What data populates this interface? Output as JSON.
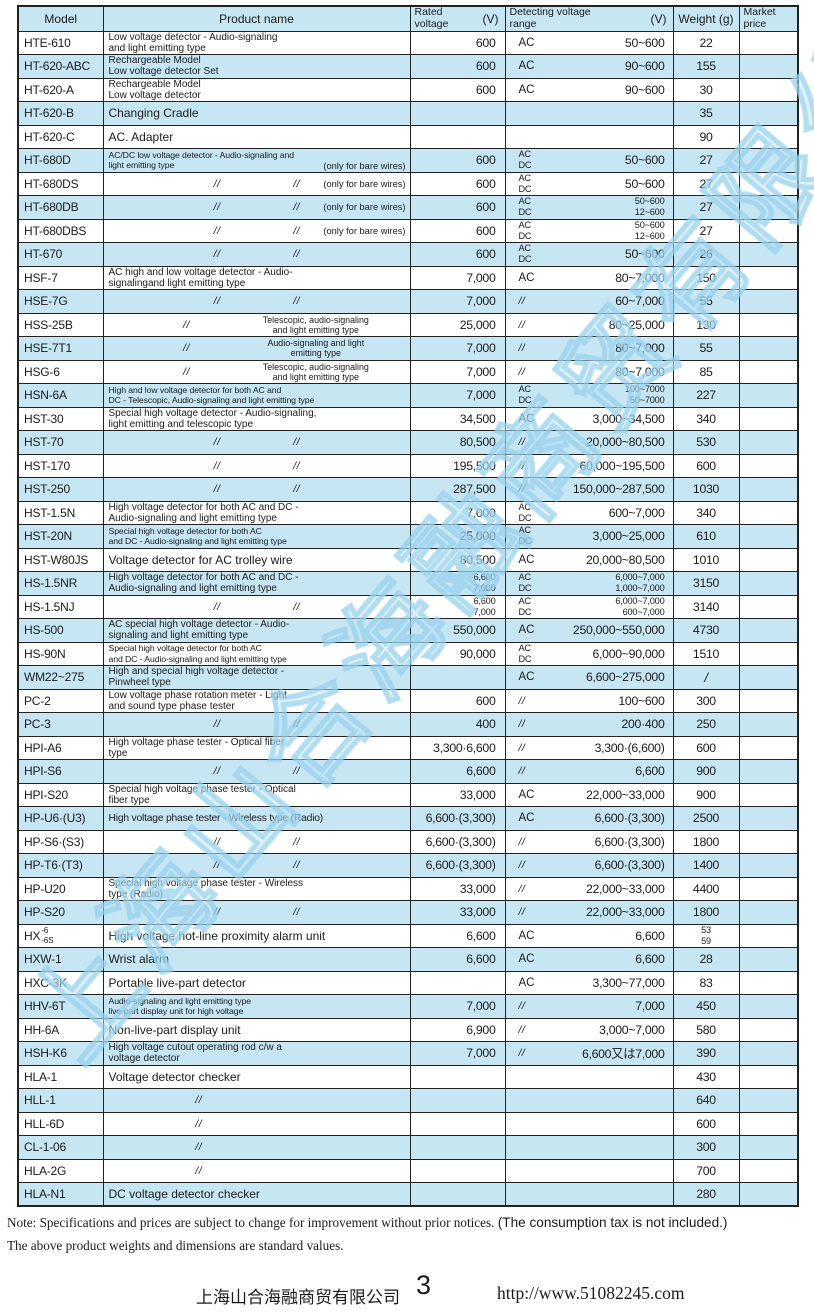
{
  "colors": {
    "row_alt": "#c7e6f4",
    "header_bg": "#c7e6f4",
    "border": "#222222",
    "watermark_blue": "#9fd4ec"
  },
  "ditto_mark": "//",
  "watermark_text": "上海山合海融商贸有限公司",
  "table": {
    "columns": [
      {
        "label": "Model"
      },
      {
        "label": "Product name"
      },
      {
        "stack": [
          "Rated",
          "voltage"
        ],
        "unit": "(V)"
      },
      {
        "stack": [
          "Detecting voltage",
          "range"
        ],
        "unit": "(V)"
      },
      {
        "label": "Weight (g)"
      },
      {
        "stack": [
          "Market",
          "price"
        ]
      }
    ],
    "rows": [
      {
        "model": "HTE-610",
        "name": {
          "lines": [
            "Low voltage detector - Audio-signaling",
            "and light emitting type"
          ]
        },
        "rated": "600",
        "det": {
          "phase": "AC",
          "range": "50~600"
        },
        "weight": "22"
      },
      {
        "model": "HT-620-ABC",
        "name": {
          "lines": [
            "Rechargeable Model",
            "Low voltage detector Set"
          ]
        },
        "rated": "600",
        "det": {
          "phase": "AC",
          "range": "90~600"
        },
        "weight": "155"
      },
      {
        "model": "HT-620-A",
        "name": {
          "lines": [
            "Rechargeable Model",
            "Low voltage detector"
          ]
        },
        "rated": "600",
        "det": {
          "phase": "AC",
          "range": "90~600"
        },
        "weight": "30"
      },
      {
        "model": "HT-620-B",
        "name": {
          "lines": [
            "Changing Cradle"
          ]
        },
        "rated": "",
        "det": {},
        "weight": "35"
      },
      {
        "model": "HT-620-C",
        "name": {
          "lines": [
            "AC. Adapter"
          ]
        },
        "rated": "",
        "det": {},
        "weight": "90"
      },
      {
        "model": "HT-680D",
        "name": {
          "lines": [
            "AC/DC low voltage detector - Audio-signaling and",
            "light emitting type"
          ],
          "sm": true,
          "note": "(only for bare wires)"
        },
        "rated": "600",
        "det": {
          "phase": [
            "AC",
            "DC"
          ],
          "range": "50~600"
        },
        "weight": "27"
      },
      {
        "model": "HT-680DS",
        "name": {
          "dittos": 2,
          "note": "(only for bare wires)"
        },
        "rated": "600",
        "det": {
          "phase": [
            "AC",
            "DC"
          ],
          "range": "50~600"
        },
        "weight": "27"
      },
      {
        "model": "HT-680DB",
        "name": {
          "dittos": 2,
          "note": "(only for bare wires)"
        },
        "rated": "600",
        "det": {
          "phase": [
            "AC",
            "DC"
          ],
          "range": [
            "50~600",
            "12~600"
          ]
        },
        "weight": "27"
      },
      {
        "model": "HT-680DBS",
        "name": {
          "dittos": 2,
          "note": "(only for bare wires)"
        },
        "rated": "600",
        "det": {
          "phase": [
            "AC",
            "DC"
          ],
          "range": [
            "50~600",
            "12~600"
          ]
        },
        "weight": "27"
      },
      {
        "model": "HT-670",
        "name": {
          "dittos": 2
        },
        "rated": "600",
        "det": {
          "phase": [
            "AC",
            "DC"
          ],
          "range": "50~600"
        },
        "weight": "26"
      },
      {
        "model": "HSF-7",
        "name": {
          "lines": [
            "AC high and low voltage detector - Audio-",
            "signalingand light emitting type"
          ]
        },
        "rated": "7,000",
        "det": {
          "phase": "AC",
          "range": "80~7,000"
        },
        "weight": "150"
      },
      {
        "model": "HSE-7G",
        "name": {
          "dittos": 2
        },
        "rated": "7,000",
        "det": {
          "phase": "//",
          "range": "60~7,000"
        },
        "weight": "55"
      },
      {
        "model": "HSS-25B",
        "name": {
          "dittos": 1,
          "right": [
            "Telescopic, audio-signaling",
            "and light emitting type"
          ]
        },
        "rated": "25,000",
        "det": {
          "phase": "//",
          "range": "80~25,000"
        },
        "weight": "130"
      },
      {
        "model": "HSE-7T1",
        "name": {
          "dittos": 1,
          "right": [
            "Audio-signaling and light",
            "emitting type"
          ]
        },
        "rated": "7,000",
        "det": {
          "phase": "//",
          "range": "80~7,000"
        },
        "weight": "55"
      },
      {
        "model": "HSG-6",
        "name": {
          "dittos": 1,
          "right": [
            "Telescopic, audio-signaling",
            "and light emitting type"
          ]
        },
        "rated": "7,000",
        "det": {
          "phase": "//",
          "range": "80~7,000"
        },
        "weight": "85"
      },
      {
        "model": "HSN-6A",
        "name": {
          "lines": [
            "High and low voltage detector for both AC and",
            "DC - Telescopic, Audio-signaling and light emitting type"
          ],
          "sm": true
        },
        "rated": "7,000",
        "det": {
          "phase": [
            "AC",
            "DC"
          ],
          "range": [
            "100~7000",
            "50~7000"
          ]
        },
        "weight": "227"
      },
      {
        "model": "HST-30",
        "name": {
          "lines": [
            "Special high voltage detector - Audio-signaling,",
            "light emitting and telescopic type"
          ]
        },
        "rated": "34,500",
        "det": {
          "phase": "AC",
          "range": "3,000~34,500"
        },
        "weight": "340"
      },
      {
        "model": "HST-70",
        "name": {
          "dittos": 2
        },
        "rated": "80,500",
        "det": {
          "phase": "//",
          "range": "20,000~80,500"
        },
        "weight": "530"
      },
      {
        "model": "HST-170",
        "name": {
          "dittos": 2
        },
        "rated": "195,500",
        "det": {
          "phase": "//",
          "range": "60,000~195,500"
        },
        "weight": "600"
      },
      {
        "model": "HST-250",
        "name": {
          "dittos": 2
        },
        "rated": "287,500",
        "det": {
          "phase": "//",
          "range": "150,000~287,500"
        },
        "weight": "1030"
      },
      {
        "model": "HST-1.5N",
        "name": {
          "lines": [
            "High voltage detector for both AC and DC -",
            "Audio-signaling and light emitting type"
          ]
        },
        "rated": "7,000",
        "det": {
          "phase": [
            "AC",
            "DC"
          ],
          "range": "600~7,000"
        },
        "weight": "340"
      },
      {
        "model": "HST-20N",
        "name": {
          "lines": [
            "Special high voltage detector for both AC",
            "and DC - Audio-signaling and light emitting type"
          ],
          "sm": true
        },
        "rated": "25,000",
        "det": {
          "phase": [
            "AC",
            "DC"
          ],
          "range": "3,000~25,000"
        },
        "weight": "610"
      },
      {
        "model": "HST-W80JS",
        "name": {
          "lines": [
            "Voltage detector for AC trolley wire"
          ]
        },
        "rated": "80,500",
        "det": {
          "phase": "AC",
          "range": "20,000~80,500"
        },
        "weight": "1010"
      },
      {
        "model": "HS-1.5NR",
        "name": {
          "lines": [
            "High voltage detector for both AC and DC -",
            "Audio-signaling and light emitting type"
          ]
        },
        "rated": [
          "6,600",
          "7,000"
        ],
        "det": {
          "phase": [
            "AC",
            "DC"
          ],
          "range": [
            "6,000~7,000",
            "1,000~7,000"
          ]
        },
        "weight": "3150"
      },
      {
        "model": "HS-1.5NJ",
        "name": {
          "dittos": 2
        },
        "rated": [
          "6,600",
          "7,000"
        ],
        "det": {
          "phase": [
            "AC",
            "DC"
          ],
          "range": [
            "6,000~7,000",
            "600~7,000"
          ]
        },
        "weight": "3140"
      },
      {
        "model": "HS-500",
        "name": {
          "lines": [
            "AC special high voltage detector - Audio-",
            "signaling and light emitting type"
          ]
        },
        "rated": "550,000",
        "det": {
          "phase": "AC",
          "range": "250,000~550,000"
        },
        "weight": "4730"
      },
      {
        "model": "HS-90N",
        "name": {
          "lines": [
            "Special high voltage detector for both AC",
            "and DC - Audio-signaling and light emitting type"
          ],
          "sm": true
        },
        "rated": "90,000",
        "det": {
          "phase": [
            "AC",
            "DC"
          ],
          "range": "6,000~90,000"
        },
        "weight": "1510"
      },
      {
        "model": "WM22~275",
        "name": {
          "lines": [
            "High and special high voltage detector -",
            "Pinwheel type"
          ]
        },
        "rated": "",
        "det": {
          "phase": "AC",
          "range": "6,600~275,000"
        },
        "weight": "/"
      },
      {
        "model": "PC-2",
        "name": {
          "lines": [
            "Low voltage phase rotation meter - Light",
            "and sound type phase tester"
          ]
        },
        "rated": "600",
        "det": {
          "phase": "//",
          "range": "100~600"
        },
        "weight": "300"
      },
      {
        "model": "PC-3",
        "name": {
          "dittos": 2
        },
        "rated": "400",
        "det": {
          "phase": "//",
          "range": "200·400"
        },
        "weight": "250"
      },
      {
        "model": "HPI-A6",
        "name": {
          "lines": [
            "High voltage phase tester - Optical fiber",
            "type"
          ]
        },
        "rated": "3,300·6,600",
        "det": {
          "phase": "//",
          "range": "3,300·(6,600)"
        },
        "weight": "600"
      },
      {
        "model": "HPI-S6",
        "name": {
          "dittos": 2
        },
        "rated": "6,600",
        "det": {
          "phase": "//",
          "range": "6,600"
        },
        "weight": "900"
      },
      {
        "model": "HPI-S20",
        "name": {
          "lines": [
            "Special high voltage phase tester - Optical",
            "fiber type"
          ]
        },
        "rated": "33,000",
        "det": {
          "phase": "AC",
          "range": "22,000~33,000"
        },
        "weight": "900"
      },
      {
        "model": "HP-U6·(U3)",
        "name": {
          "lines": [
            "High voltage phase tester - Wireless type (Radio)"
          ],
          "size": "md1"
        },
        "rated": "6,600·(3,300)",
        "det": {
          "phase": "AC",
          "range": "6,600·(3,300)"
        },
        "weight": "2500"
      },
      {
        "model": "HP-S6·(S3)",
        "name": {
          "dittos": 2
        },
        "rated": "6,600·(3,300)",
        "det": {
          "phase": "//",
          "range": "6,600·(3,300)"
        },
        "weight": "1800"
      },
      {
        "model": "HP-T6·(T3)",
        "name": {
          "dittos": 2
        },
        "rated": "6,600·(3,300)",
        "det": {
          "phase": "//",
          "range": "6,600·(3,300)"
        },
        "weight": "1400"
      },
      {
        "model": "HP-U20",
        "name": {
          "lines": [
            "Special high voltage phase tester - Wireless",
            "type (Radio)"
          ]
        },
        "rated": "33,000",
        "det": {
          "phase": "//",
          "range": "22,000~33,000"
        },
        "weight": "4400"
      },
      {
        "model": "HP-S20",
        "name": {
          "dittos": 2
        },
        "rated": "33,000",
        "det": {
          "phase": "//",
          "range": "22,000~33,000"
        },
        "weight": "1800"
      },
      {
        "model": "HX",
        "model_stack": [
          "-6",
          "-6S"
        ],
        "name": {
          "lines": [
            "High voltage hot-line proximity alarm unit"
          ]
        },
        "rated": "6,600",
        "det": {
          "phase": "AC",
          "range": "6,600"
        },
        "weight": [
          "53",
          "59"
        ]
      },
      {
        "model": "HXW-1",
        "name": {
          "lines": [
            "Wrist alarm"
          ]
        },
        "rated": "6,600",
        "det": {
          "phase": "AC",
          "range": "6,600"
        },
        "weight": "28"
      },
      {
        "model": "HXC-3K",
        "name": {
          "lines": [
            "Portable live-part detector"
          ]
        },
        "rated": "",
        "det": {
          "phase": "AC",
          "range": "3,300~77,000"
        },
        "weight": "83"
      },
      {
        "model": "HHV-6T",
        "name": {
          "lines": [
            "Audio-signaling and light emitting type",
            "live-part display unit for high voltage"
          ],
          "sm": true
        },
        "rated": "7,000",
        "det": {
          "phase": "//",
          "range": "7,000"
        },
        "weight": "450"
      },
      {
        "model": "HH-6A",
        "name": {
          "lines": [
            "Non-live-part display unit"
          ]
        },
        "rated": "6,900",
        "det": {
          "phase": "//",
          "range": "3,000~7,000"
        },
        "weight": "580"
      },
      {
        "model": "HSH-K6",
        "name": {
          "lines": [
            "High voltage cutout operating rod c/w a",
            "voltage detector"
          ]
        },
        "rated": "7,000",
        "det": {
          "phase": "//",
          "range": "6,600又は7,000"
        },
        "weight": "390"
      },
      {
        "model": "HLA-1",
        "name": {
          "lines": [
            "Voltage detector checker"
          ]
        },
        "rated": "",
        "det": {},
        "weight": "430"
      },
      {
        "model": "HLL-1",
        "name": {
          "dittos": 1
        },
        "rated": "",
        "det": {},
        "weight": "640"
      },
      {
        "model": "HLL-6D",
        "name": {
          "dittos": 1
        },
        "rated": "",
        "det": {},
        "weight": "600"
      },
      {
        "model": "CL-1-06",
        "name": {
          "dittos": 1
        },
        "rated": "",
        "det": {},
        "weight": "300"
      },
      {
        "model": "HLA-2G",
        "name": {
          "dittos": 1
        },
        "rated": "",
        "det": {},
        "weight": "700"
      },
      {
        "model": "HLA-N1",
        "name": {
          "lines": [
            "DC voltage detector checker"
          ]
        },
        "rated": "",
        "det": {},
        "weight": "280"
      }
    ]
  },
  "notes": {
    "note1_serif": "Note: Specifications and prices are subject to change for improvement without prior notices.",
    "note1_sans": "(The consumption tax is not included.)",
    "note2": "The above product weights and dimensions are standard values."
  },
  "footer": {
    "company": "上海山合海融商贸有限公司",
    "page_number": "3",
    "url": "http://www.51082245.com"
  }
}
